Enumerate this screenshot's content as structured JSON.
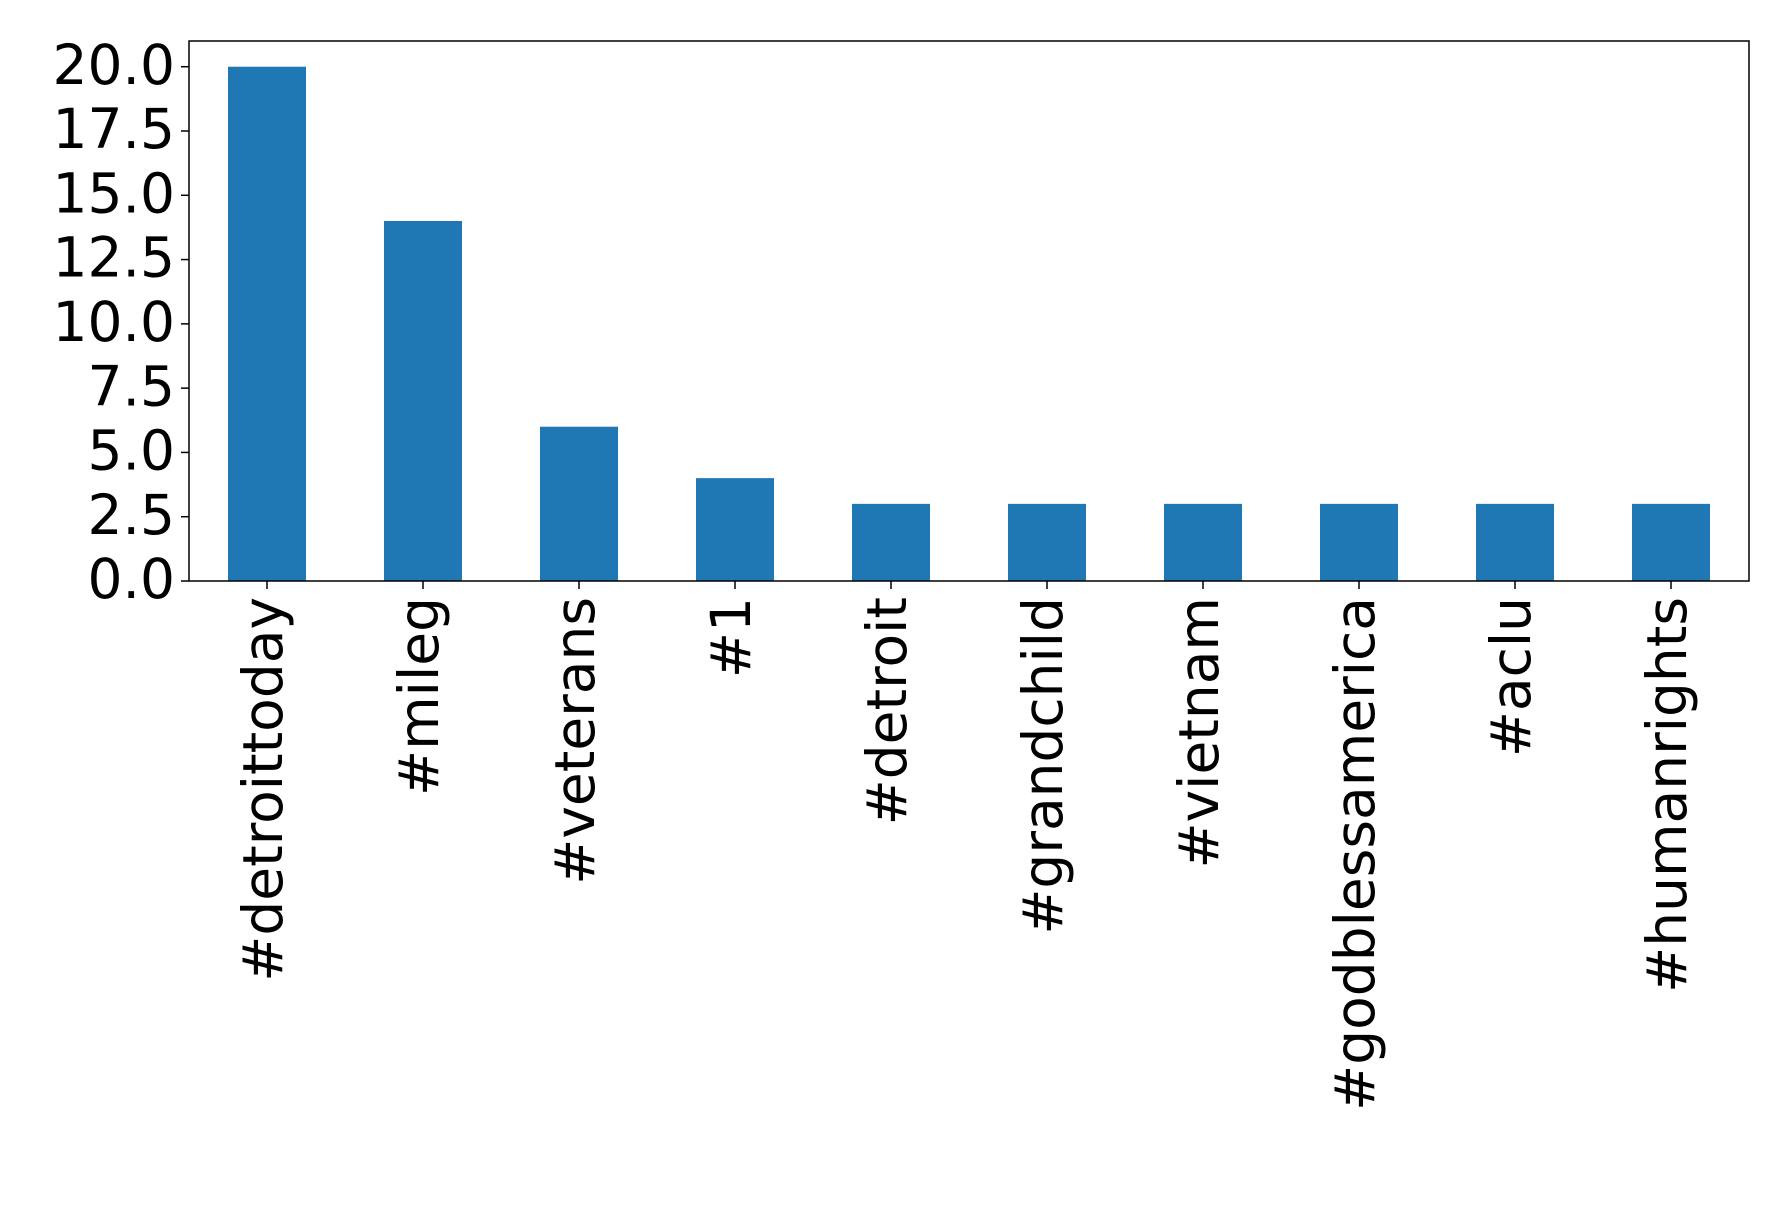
{
  "chart_data": {
    "type": "bar",
    "categories": [
      "#detroittoday",
      "#mileg",
      "#veterans",
      "#1",
      "#detroit",
      "#grandchild",
      "#vietnam",
      "#godblessamerica",
      "#aclu",
      "#humanrights"
    ],
    "values": [
      20,
      14,
      6,
      4,
      3,
      3,
      3,
      3,
      3,
      3
    ],
    "color": "#1f77b4",
    "ylim": [
      0,
      21
    ],
    "yticks": [
      {
        "value": 0,
        "label": "0.0"
      },
      {
        "value": 2.5,
        "label": "2.5"
      },
      {
        "value": 5,
        "label": "5.0"
      },
      {
        "value": 7.5,
        "label": "7.5"
      },
      {
        "value": 10,
        "label": "10.0"
      },
      {
        "value": 12.5,
        "label": "12.5"
      },
      {
        "value": 15,
        "label": "15.0"
      },
      {
        "value": 17.5,
        "label": "17.5"
      },
      {
        "value": 20,
        "label": "20.0"
      }
    ],
    "grid": false
  }
}
